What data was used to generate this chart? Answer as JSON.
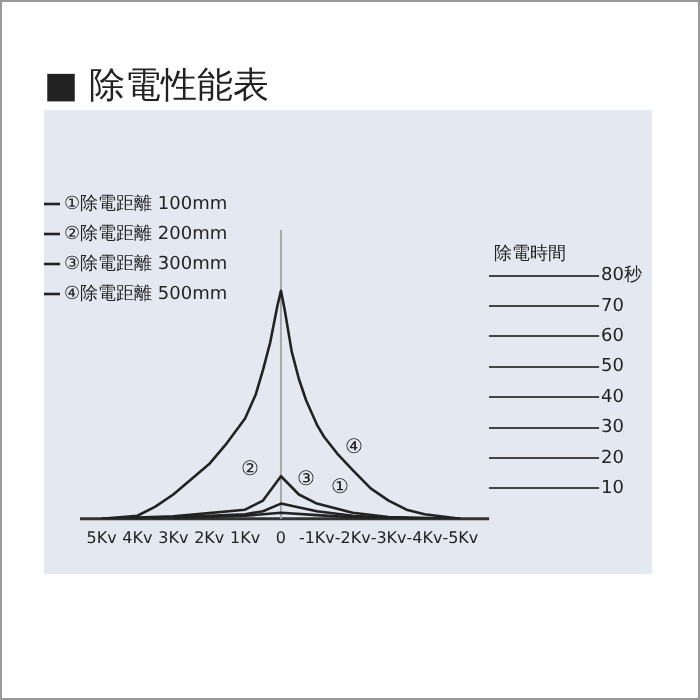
{
  "chart_data": {
    "type": "line",
    "title": "■ 除電性能表",
    "ylabel": "除電時間",
    "x": [
      5,
      4,
      3.5,
      3,
      2.5,
      2,
      1.5,
      1,
      0.7,
      0.5,
      0.3,
      0.1,
      0,
      -0.1,
      -0.3,
      -0.5,
      -0.7,
      -1,
      -1.2,
      -1.6,
      -2,
      -2.5,
      -3,
      -3.5,
      -4,
      -5
    ],
    "series": [
      {
        "name": "①除電距離 100mm",
        "color": "#222222",
        "x": [
          3,
          1,
          0,
          -1,
          -2,
          -3
        ],
        "values": [
          0.3,
          1,
          2,
          1.2,
          0.5,
          0.2
        ]
      },
      {
        "name": "②除電距離 200mm",
        "color": "#222222",
        "x": [
          4,
          3,
          1,
          0.5,
          0,
          -1,
          -2,
          -3,
          -4
        ],
        "values": [
          0.2,
          0.5,
          1.5,
          2.5,
          5,
          2.5,
          1,
          0.3,
          0.1
        ]
      },
      {
        "name": "③除電距離 300mm",
        "color": "#222222",
        "x": [
          5,
          3,
          1,
          0.5,
          0,
          -0.5,
          -1,
          -2,
          -3,
          -5
        ],
        "values": [
          0,
          0.8,
          3,
          6,
          14,
          8,
          5,
          2,
          0.6,
          0
        ]
      },
      {
        "name": "④除電距離 500mm",
        "color": "#222222",
        "values": [
          0,
          1,
          4,
          8,
          13,
          18,
          25,
          33,
          41,
          49,
          58,
          70,
          75,
          69,
          55,
          46,
          39,
          31,
          27,
          21,
          16,
          10,
          6,
          3,
          1.5,
          0
        ]
      }
    ],
    "xlim": [
      5.6,
      -5.8
    ],
    "xticks": [
      {
        "value": 5,
        "label": "5Kv"
      },
      {
        "value": 4,
        "label": "4Kv"
      },
      {
        "value": 3,
        "label": "3Kv"
      },
      {
        "value": 2,
        "label": "2Kv"
      },
      {
        "value": 1,
        "label": "1Kv"
      },
      0,
      {
        "value": -1,
        "label": "-1Kv"
      },
      {
        "value": -2,
        "label": "-2Kv"
      },
      {
        "value": -3,
        "label": "-3Kv"
      },
      {
        "value": -4,
        "label": "-4Kv"
      },
      {
        "value": -5,
        "label": "-5Kv"
      }
    ],
    "ylim": [
      0,
      95
    ],
    "yticks": [
      10,
      20,
      30,
      40,
      50,
      60,
      70,
      {
        "value": 80,
        "label": "80秒"
      }
    ],
    "ref_lines": [
      {
        "axis": "x",
        "value": 0,
        "color": "#a8a8a8"
      }
    ],
    "annotations": [
      "①",
      "②",
      "③",
      "④"
    ],
    "legend": "top left",
    "grid": false,
    "marker": "none",
    "line_style": "solid"
  }
}
